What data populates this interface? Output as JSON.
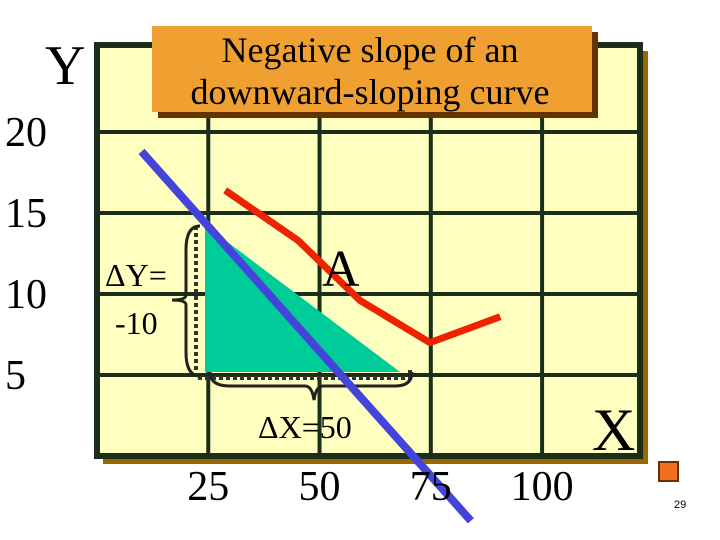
{
  "chart_data": {
    "type": "line",
    "title": "Negative slope of an downward-sloping curve",
    "x_label": "X",
    "y_label": "Y",
    "xlim": [
      0,
      122
    ],
    "ylim": [
      0,
      25
    ],
    "xticks": [
      25,
      50,
      75,
      100
    ],
    "yticks": [
      5,
      10,
      15,
      20
    ],
    "grid": true,
    "series": [
      {
        "color": "#4444dd",
        "x": [
          10,
          84
        ],
        "values": [
          18.8,
          -4
        ]
      },
      {
        "color": "#ee2200",
        "x": [
          28.8,
          45.2,
          59.1,
          74.8,
          90.6
        ],
        "values": [
          16.4,
          13.3,
          9.6,
          7.0,
          8.6
        ]
      }
    ],
    "annotations": [
      "ΔY=",
      "-10",
      "ΔX=50",
      "A"
    ],
    "page_number": "29"
  }
}
